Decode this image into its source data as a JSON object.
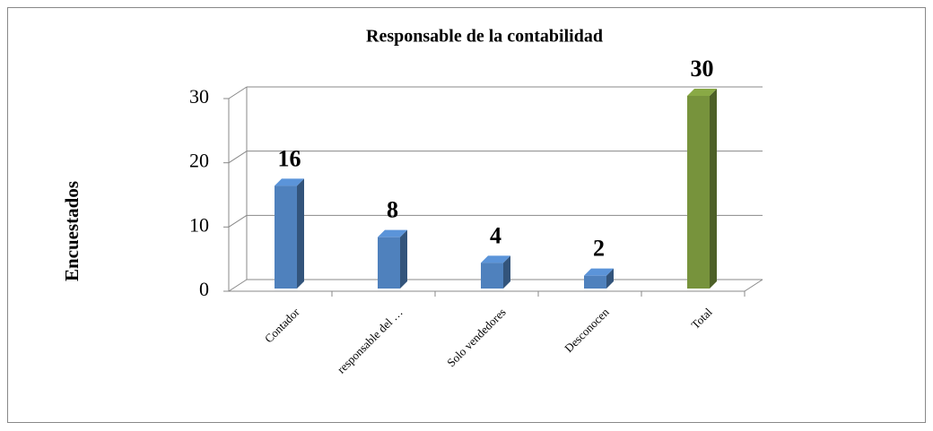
{
  "chart_data": {
    "type": "bar",
    "title": "Responsable de la contabilidad",
    "categories": [
      "Contador",
      "responsable del …",
      "Solo vendedores",
      "Desconocen",
      "Total"
    ],
    "values": [
      16,
      8,
      4,
      2,
      30
    ],
    "colors": [
      "#4f81bd",
      "#4f81bd",
      "#4f81bd",
      "#4f81bd",
      "#77933c"
    ],
    "y_label": "Encuestados",
    "ylim": [
      0,
      30
    ],
    "yticks": [
      0,
      10,
      20,
      30
    ],
    "grid": true
  }
}
